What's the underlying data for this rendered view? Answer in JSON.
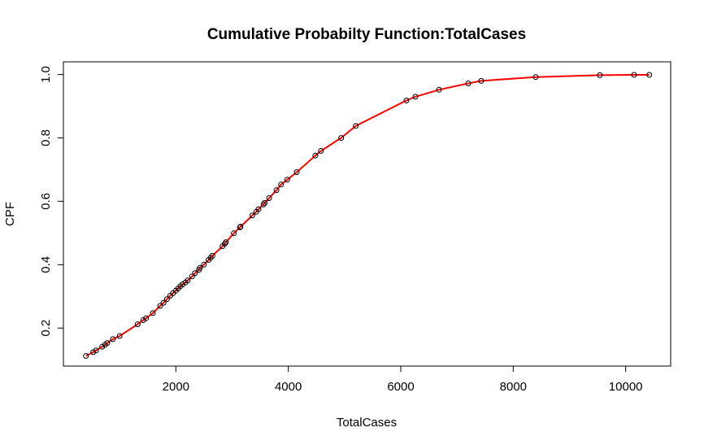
{
  "chart_data": {
    "type": "line",
    "title": "Cumulative Probabilty Function:TotalCases",
    "xlabel": "TotalCases",
    "ylabel": "CPF",
    "xlim": [
      0,
      10800
    ],
    "ylim": [
      0.08,
      1.04
    ],
    "x_ticks": [
      2000,
      4000,
      6000,
      8000,
      10000
    ],
    "y_ticks": [
      0.2,
      0.4,
      0.6,
      0.8,
      1.0
    ],
    "x_tick_labels": [
      "2000",
      "4000",
      "6000",
      "8000",
      "10000"
    ],
    "y_tick_labels": [
      "0.2",
      "0.4",
      "0.6",
      "0.8",
      "1.0"
    ],
    "grid": false,
    "legend": "none",
    "series": [
      {
        "style": "points-and-line",
        "point_color": "#000000",
        "line_color": "#ff0000",
        "x": [
          400,
          530,
          580,
          690,
          740,
          780,
          880,
          1000,
          1320,
          1420,
          1470,
          1590,
          1720,
          1780,
          1840,
          1900,
          1950,
          2000,
          2040,
          2080,
          2120,
          2170,
          2210,
          2290,
          2340,
          2410,
          2430,
          2500,
          2580,
          2620,
          2650,
          2830,
          2870,
          2890,
          3030,
          3140,
          3150,
          3360,
          3430,
          3470,
          3560,
          3580,
          3660,
          3790,
          3870,
          3980,
          4150,
          4480,
          4580,
          4940,
          5200,
          6100,
          6260,
          6680,
          7200,
          7430,
          8400,
          9540,
          10150,
          10420
        ],
        "y": [
          0.112,
          0.124,
          0.129,
          0.141,
          0.147,
          0.153,
          0.165,
          0.175,
          0.212,
          0.225,
          0.231,
          0.247,
          0.27,
          0.28,
          0.291,
          0.302,
          0.31,
          0.318,
          0.325,
          0.332,
          0.338,
          0.344,
          0.35,
          0.363,
          0.373,
          0.384,
          0.39,
          0.4,
          0.415,
          0.422,
          0.428,
          0.458,
          0.466,
          0.471,
          0.499,
          0.518,
          0.52,
          0.555,
          0.567,
          0.575,
          0.59,
          0.595,
          0.61,
          0.635,
          0.653,
          0.668,
          0.692,
          0.744,
          0.759,
          0.8,
          0.838,
          0.918,
          0.93,
          0.952,
          0.972,
          0.98,
          0.992,
          0.998,
          0.999,
          0.999
        ]
      }
    ]
  }
}
